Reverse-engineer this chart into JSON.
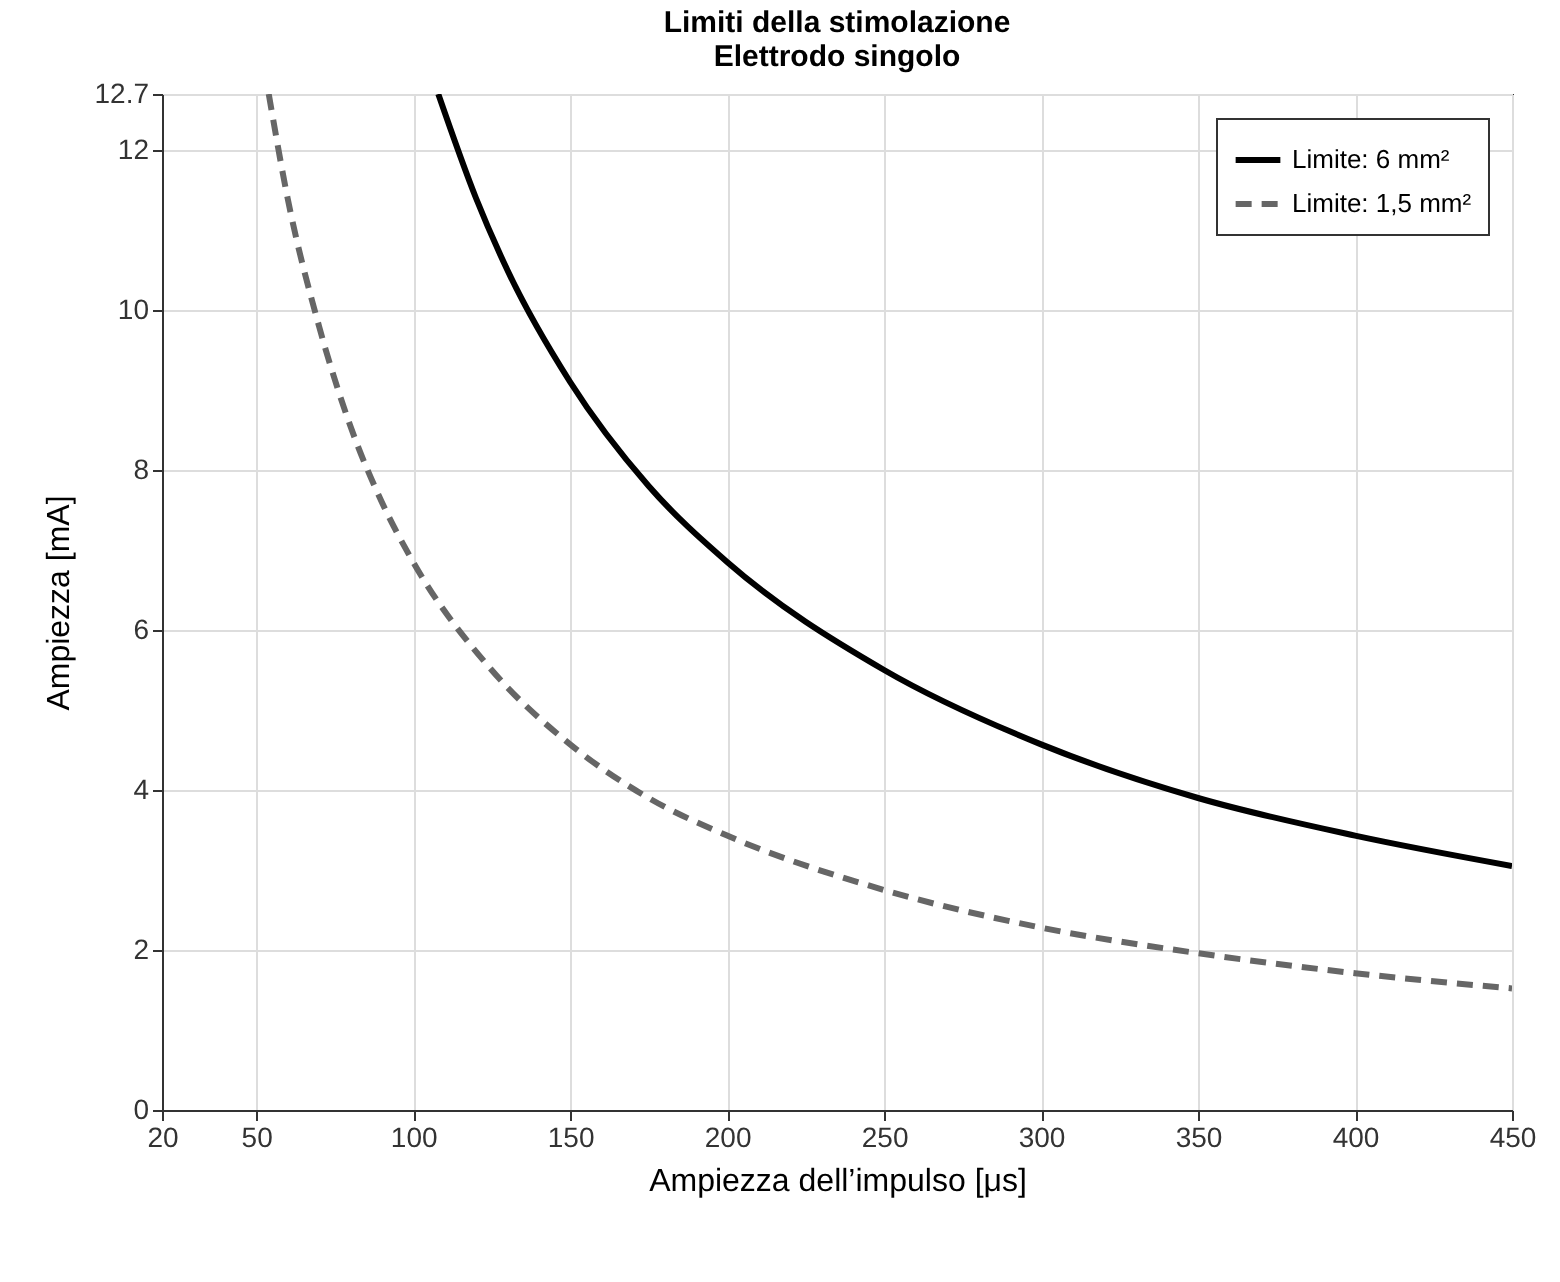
{
  "chart_data": {
    "type": "line",
    "title": "Limiti della stimolazione\nElettrodo singolo",
    "xlabel": "Ampiezza dell’impulso [μs]",
    "ylabel": "Ampiezza [mA]",
    "xlim": [
      20,
      450
    ],
    "xticks": [
      20,
      50,
      100,
      150,
      200,
      250,
      300,
      350,
      400,
      450
    ],
    "ylim": [
      0,
      12.7
    ],
    "yticks": [
      0,
      2,
      4,
      6,
      8,
      10,
      12,
      {
        "value": 12.7,
        "label": "12.7"
      }
    ],
    "grid": true,
    "legend": "top right",
    "series": [
      {
        "name": "Limite: 6 mm²",
        "color": "#000000",
        "line_style": "solid",
        "x": [
          108,
          120,
          130,
          150,
          175,
          200,
          250,
          300,
          350,
          400,
          450
        ],
        "values": [
          12.7,
          11.4,
          10.5,
          9.1,
          7.8,
          6.85,
          5.5,
          4.57,
          3.9,
          3.43,
          3.05
        ]
      },
      {
        "name": "Limite: 1,5 mm²",
        "color": "#666666",
        "line_style": "dashed",
        "x": [
          54,
          60,
          70,
          80,
          90,
          100,
          125,
          150,
          175,
          200,
          250,
          300,
          350,
          400,
          450
        ],
        "values": [
          12.7,
          11.4,
          9.8,
          8.55,
          7.6,
          6.85,
          5.5,
          4.57,
          3.9,
          3.43,
          2.75,
          2.28,
          1.96,
          1.71,
          1.52
        ]
      }
    ]
  }
}
